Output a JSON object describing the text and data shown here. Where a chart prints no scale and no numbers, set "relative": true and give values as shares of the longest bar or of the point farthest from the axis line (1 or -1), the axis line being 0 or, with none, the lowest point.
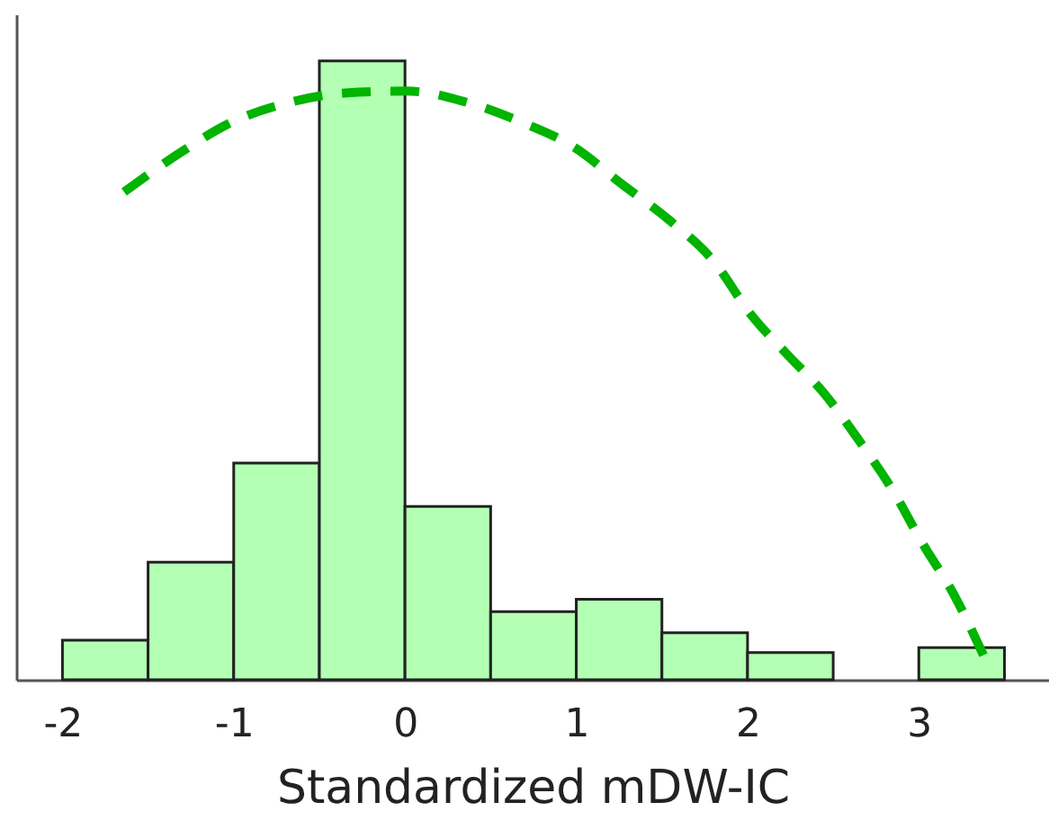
{
  "chart_data": {
    "type": "histogram",
    "relative": true,
    "xlabel": "Standardized mDW-IC",
    "xlim": [
      -2.27,
      3.76
    ],
    "xticks": [
      -2,
      -1,
      0,
      1,
      2,
      3
    ],
    "bins": [
      -2,
      -1.5,
      -1,
      -0.5,
      0,
      0.5,
      1,
      1.5,
      2,
      2.5,
      3,
      3.5
    ],
    "values": [
      0.064,
      0.19,
      0.35,
      1,
      0.28,
      0.11,
      0.13,
      0.076,
      0.044,
      0,
      0.052
    ],
    "color": "#b3ffb3",
    "series": [
      {
        "type": "line",
        "color": "#00b400",
        "line_style": "dashed",
        "x": [
          -1.64,
          -1.31,
          -1.01,
          -0.67,
          -0.35,
          0.01,
          0.36,
          0.67,
          0.99,
          1.27,
          1.55,
          1.8,
          2.02,
          2.23,
          2.44,
          2.65,
          2.85,
          3.02,
          3.2,
          3.38
        ],
        "values": [
          0.788,
          0.852,
          0.901,
          0.933,
          0.948,
          0.951,
          0.933,
          0.902,
          0.86,
          0.8,
          0.741,
          0.677,
          0.59,
          0.526,
          0.465,
          0.387,
          0.305,
          0.221,
          0.14,
          0.038
        ]
      }
    ]
  }
}
